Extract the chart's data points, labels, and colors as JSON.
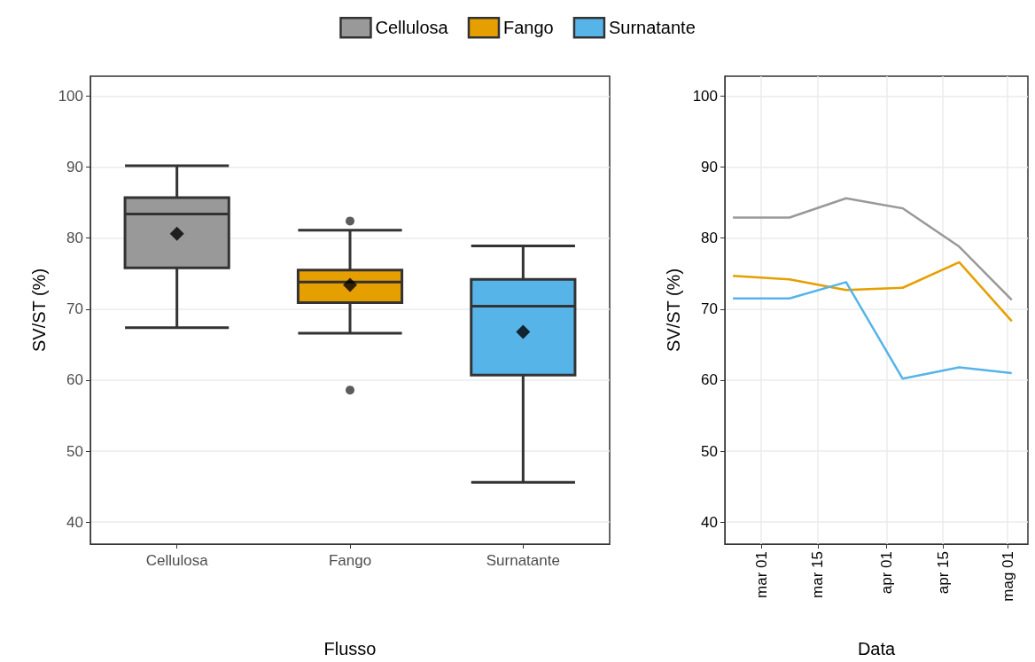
{
  "chart_data": [
    {
      "type": "box",
      "categories": [
        "Cellulosa",
        "Fango",
        "Surnatante"
      ],
      "colors": [
        "#999999",
        "#e69f00",
        "#56b4e9"
      ],
      "boxes": [
        {
          "low": 67.4,
          "q1": 75.8,
          "median": 83.4,
          "q3": 85.7,
          "high": 90.2,
          "mean": 80.6
        },
        {
          "low": 66.6,
          "q1": 70.9,
          "median": 73.8,
          "q3": 75.5,
          "high": 81.1,
          "mean": 73.4,
          "outliers": [
            82.4,
            58.6
          ]
        },
        {
          "low": 45.6,
          "q1": 60.7,
          "median": 70.4,
          "q3": 74.2,
          "high": 78.9,
          "mean": 66.8
        }
      ],
      "xlabel": "Flusso",
      "ylabel": "SV/ST (%)",
      "ylim": [
        36.9,
        102.8
      ],
      "yticks": [
        40,
        50,
        60,
        70,
        80,
        90,
        100
      ],
      "grid": true
    },
    {
      "type": "line",
      "x": [
        "--02-22",
        "--03-08",
        "--03-22",
        "--04-05",
        "--04-19",
        "--05-02"
      ],
      "series": [
        {
          "name": "Cellulosa",
          "color": "#999999",
          "values": [
            82.9,
            82.9,
            85.6,
            84.2,
            78.8,
            71.3
          ]
        },
        {
          "name": "Fango",
          "color": "#e69f00",
          "values": [
            74.7,
            74.2,
            72.7,
            73.0,
            76.6,
            68.3
          ]
        },
        {
          "name": "Surnatante",
          "color": "#56b4e9",
          "values": [
            71.5,
            71.5,
            73.8,
            60.2,
            61.8,
            61.0
          ]
        }
      ],
      "xlabel": "Data",
      "ylabel": "SV/ST (%)",
      "xlim": [
        "--02-20",
        "--05-06"
      ],
      "xticks": [
        {
          "value": "--03-01",
          "label": "mar 01"
        },
        {
          "value": "--03-15",
          "label": "mar 15"
        },
        {
          "value": "--04-01",
          "label": "apr 01"
        },
        {
          "value": "--04-15",
          "label": "apr 15"
        },
        {
          "value": "--05-01",
          "label": "mag 01"
        }
      ],
      "ylim": [
        36.9,
        102.8
      ],
      "yticks": [
        40,
        50,
        60,
        70,
        80,
        90,
        100
      ],
      "grid": true,
      "legend": "top",
      "marker": "none",
      "line_style": "solid"
    }
  ]
}
